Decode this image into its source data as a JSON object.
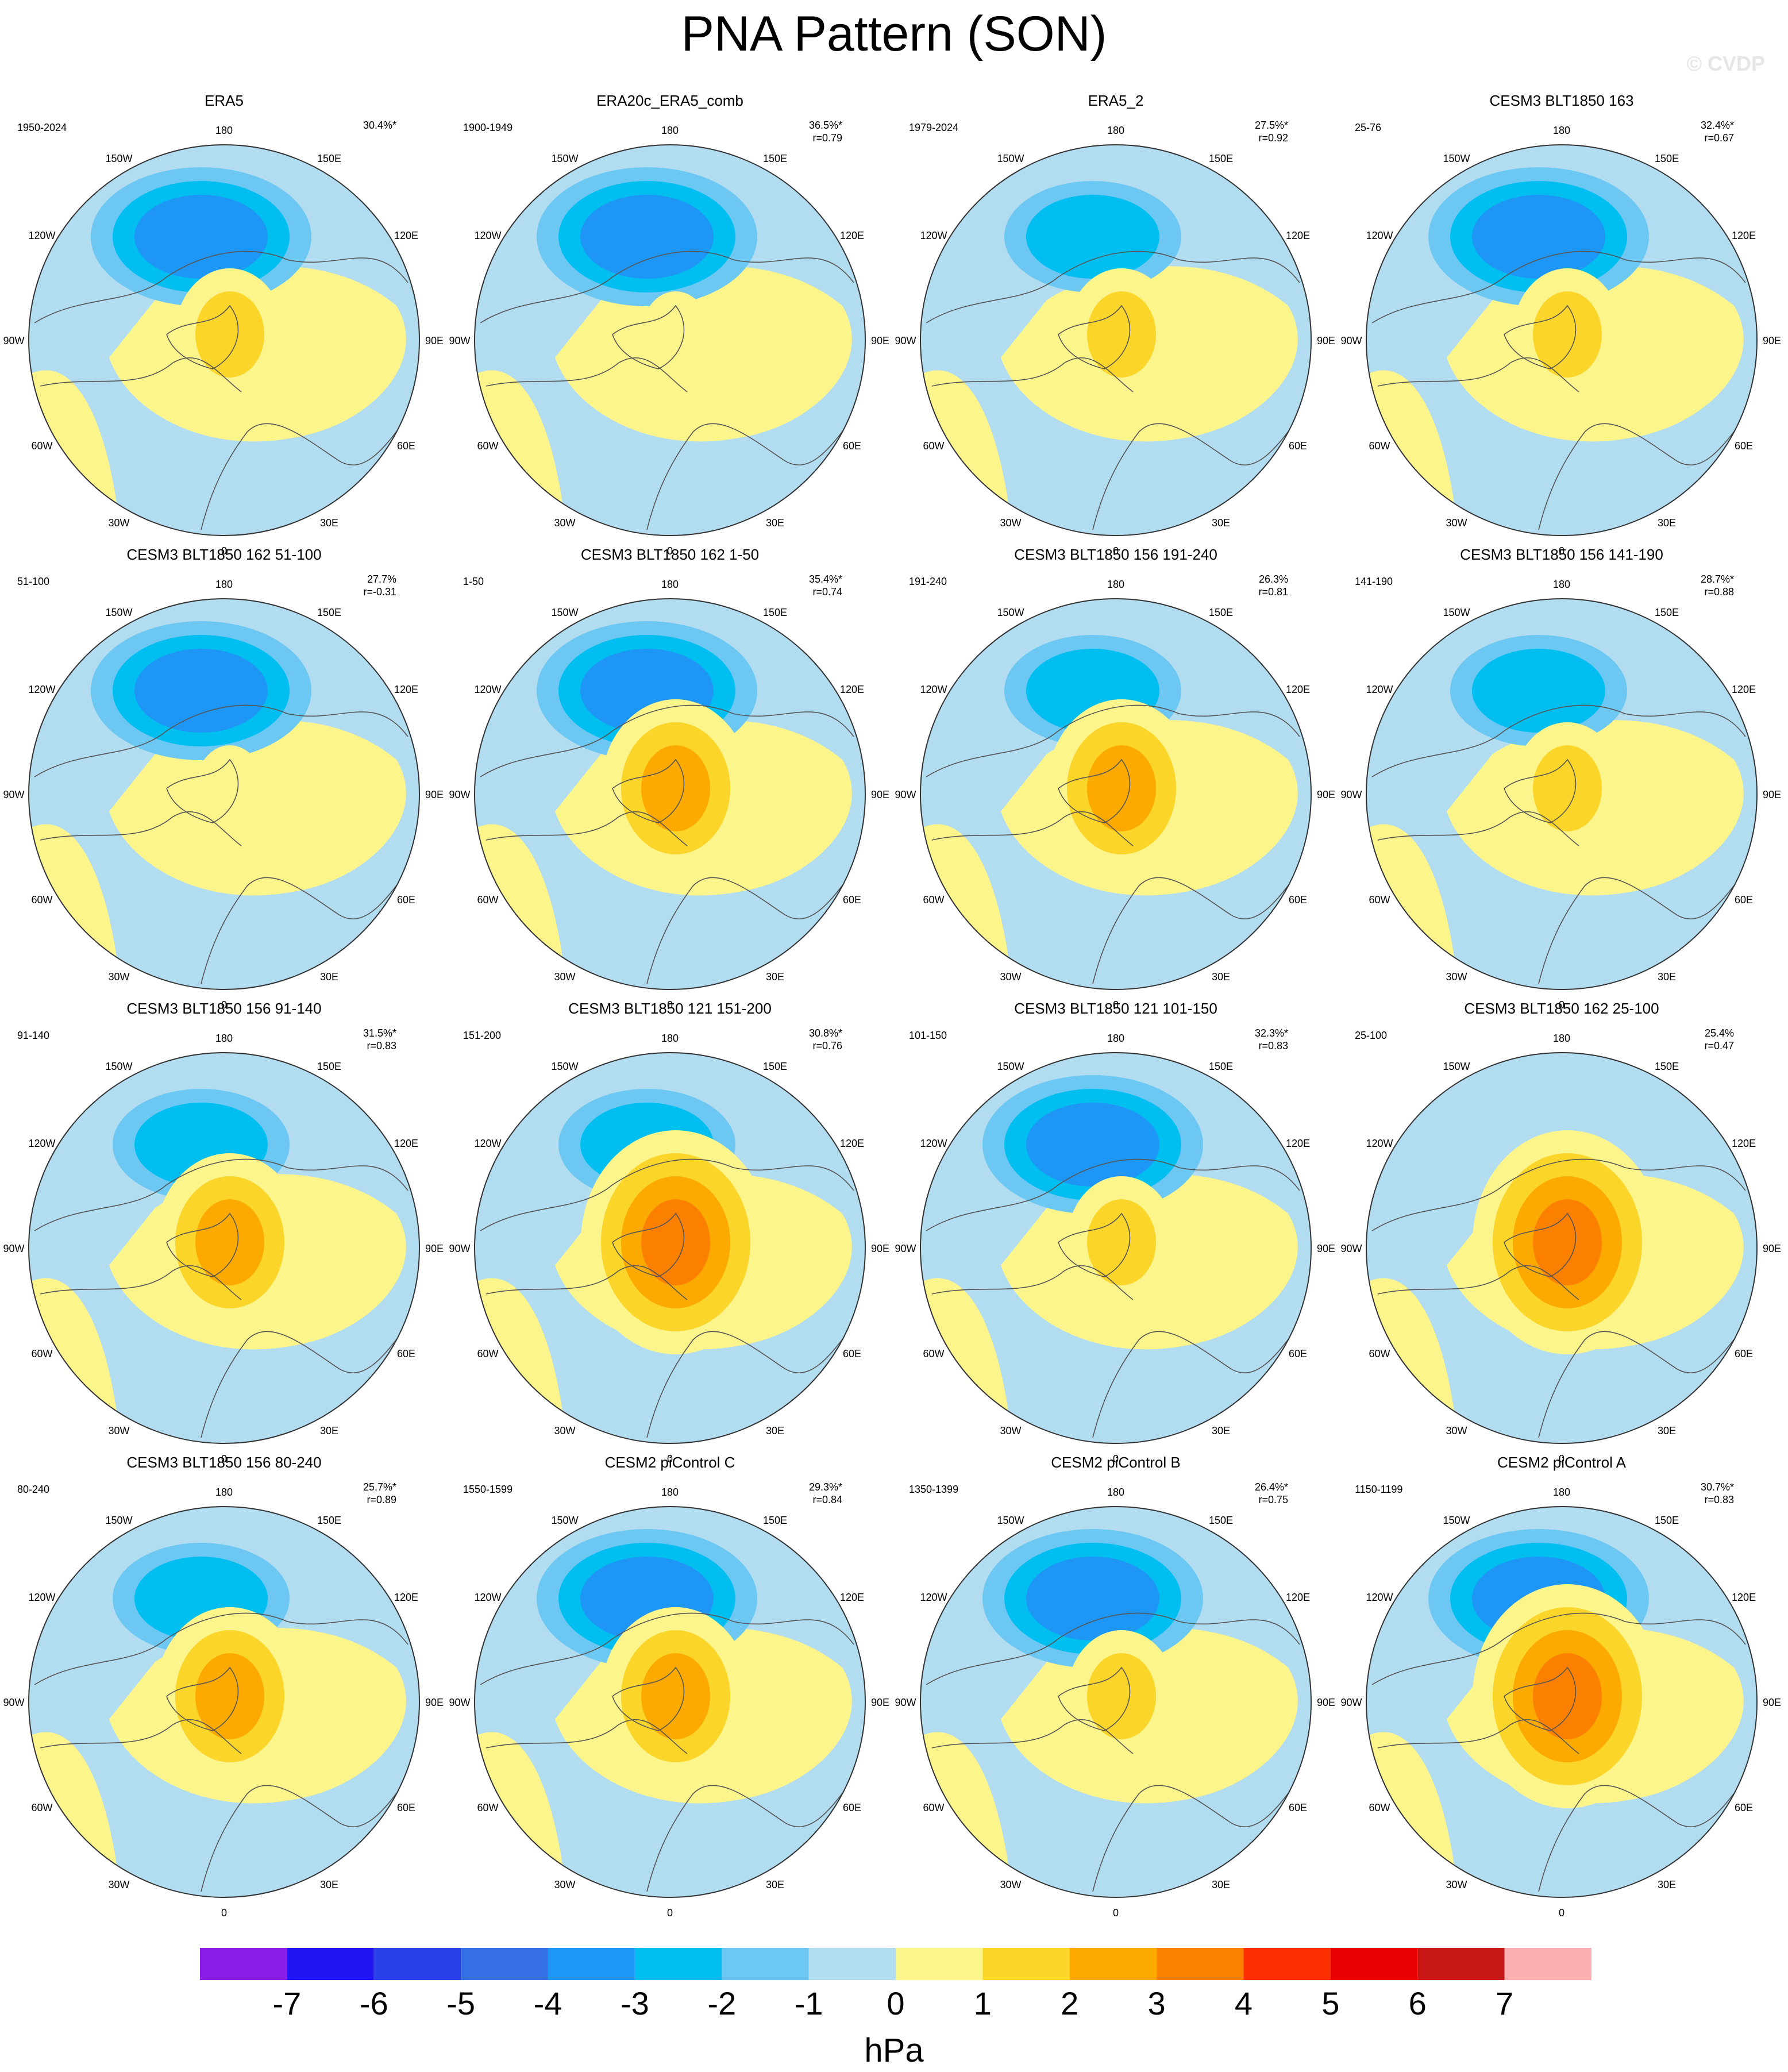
{
  "title": "PNA Pattern (SON)",
  "watermark": "© CVDP",
  "colorbar": {
    "unit": "hPa",
    "ticks": [
      "-7",
      "-6",
      "-5",
      "-4",
      "-3",
      "-2",
      "-1",
      "0",
      "1",
      "2",
      "3",
      "4",
      "5",
      "6",
      "7"
    ],
    "colors": [
      "#8a1de8",
      "#2014f2",
      "#2a40e8",
      "#3570e6",
      "#1e96f5",
      "#00bff0",
      "#6cc8f2",
      "#b2dcf0",
      "#fcf58c",
      "#fcd52a",
      "#fcaa00",
      "#fc8000",
      "#fc3000",
      "#e80000",
      "#c81818",
      "#fab0b0"
    ]
  },
  "lon_labels": [
    "180",
    "150E",
    "120E",
    "90E",
    "60E",
    "30E",
    "0",
    "30W",
    "60W",
    "90W",
    "120W",
    "150W"
  ],
  "panels": [
    {
      "title": "ERA5",
      "period": "1950-2024",
      "pct": "30.4%*",
      "r": ""
    },
    {
      "title": "ERA20c_ERA5_comb",
      "period": "1900-1949",
      "pct": "36.5%*",
      "r": "r=0.79"
    },
    {
      "title": "ERA5_2",
      "period": "1979-2024",
      "pct": "27.5%*",
      "r": "r=0.92"
    },
    {
      "title": "CESM3 BLT1850 163",
      "period": "25-76",
      "pct": "32.4%*",
      "r": "r=0.67"
    },
    {
      "title": "CESM3 BLT1850 162 51-100",
      "period": "51-100",
      "pct": "27.7%",
      "r": "r=-0.31"
    },
    {
      "title": "CESM3 BLT1850 162 1-50",
      "period": "1-50",
      "pct": "35.4%*",
      "r": "r=0.74"
    },
    {
      "title": "CESM3 BLT1850 156 191-240",
      "period": "191-240",
      "pct": "26.3%",
      "r": "r=0.81"
    },
    {
      "title": "CESM3 BLT1850 156 141-190",
      "period": "141-190",
      "pct": "28.7%*",
      "r": "r=0.88"
    },
    {
      "title": "CESM3 BLT1850 156 91-140",
      "period": "91-140",
      "pct": "31.5%*",
      "r": "r=0.83"
    },
    {
      "title": "CESM3 BLT1850 121 151-200",
      "period": "151-200",
      "pct": "30.8%*",
      "r": "r=0.76"
    },
    {
      "title": "CESM3 BLT1850 121 101-150",
      "period": "101-150",
      "pct": "32.3%*",
      "r": "r=0.83"
    },
    {
      "title": "CESM3 BLT1850 162 25-100",
      "period": "25-100",
      "pct": "25.4%",
      "r": "r=0.47"
    },
    {
      "title": "CESM3 BLT1850 156 80-240",
      "period": "80-240",
      "pct": "25.7%*",
      "r": "r=0.89"
    },
    {
      "title": "CESM2 piControl C",
      "period": "1550-1599",
      "pct": "29.3%*",
      "r": "r=0.84"
    },
    {
      "title": "CESM2 piControl B",
      "period": "1350-1399",
      "pct": "26.4%*",
      "r": "r=0.75"
    },
    {
      "title": "CESM2 piControl A",
      "period": "1150-1199",
      "pct": "30.7%*",
      "r": "r=0.83"
    }
  ],
  "chart_data": {
    "type": "heatmap",
    "title": "PNA Pattern (SON)",
    "projection": "north polar stereographic",
    "unit": "hPa",
    "color_levels": [
      -7,
      -6,
      -5,
      -4,
      -3,
      -2,
      -1,
      0,
      1,
      2,
      3,
      4,
      5,
      6,
      7
    ],
    "panels": [
      {
        "name": "ERA5",
        "pacific_low_min": -4,
        "arctic_high_max": 2
      },
      {
        "name": "ERA20c_ERA5_comb",
        "pacific_low_min": -4,
        "arctic_high_max": 1
      },
      {
        "name": "ERA5_2",
        "pacific_low_min": -3,
        "arctic_high_max": 2
      },
      {
        "name": "CESM3 BLT1850 163",
        "pacific_low_min": -4,
        "arctic_high_max": 2
      },
      {
        "name": "CESM3 BLT1850 162 51-100",
        "pacific_low_min": -4,
        "arctic_high_max": 1
      },
      {
        "name": "CESM3 BLT1850 162 1-50",
        "pacific_low_min": -4,
        "arctic_high_max": 3
      },
      {
        "name": "CESM3 BLT1850 156 191-240",
        "pacific_low_min": -3,
        "arctic_high_max": 3
      },
      {
        "name": "CESM3 BLT1850 156 141-190",
        "pacific_low_min": -3,
        "arctic_high_max": 2
      },
      {
        "name": "CESM3 BLT1850 156 91-140",
        "pacific_low_min": -3,
        "arctic_high_max": 3
      },
      {
        "name": "CESM3 BLT1850 121 151-200",
        "pacific_low_min": -3,
        "arctic_high_max": 4
      },
      {
        "name": "CESM3 BLT1850 121 101-150",
        "pacific_low_min": -4,
        "arctic_high_max": 2
      },
      {
        "name": "CESM3 BLT1850 162 25-100",
        "pacific_low_min": -1,
        "arctic_high_max": 4
      },
      {
        "name": "CESM3 BLT1850 156 80-240",
        "pacific_low_min": -3,
        "arctic_high_max": 3
      },
      {
        "name": "CESM2 piControl C",
        "pacific_low_min": -4,
        "arctic_high_max": 3
      },
      {
        "name": "CESM2 piControl B",
        "pacific_low_min": -4,
        "arctic_high_max": 2
      },
      {
        "name": "CESM2 piControl A",
        "pacific_low_min": -4,
        "arctic_high_max": 4
      }
    ]
  }
}
